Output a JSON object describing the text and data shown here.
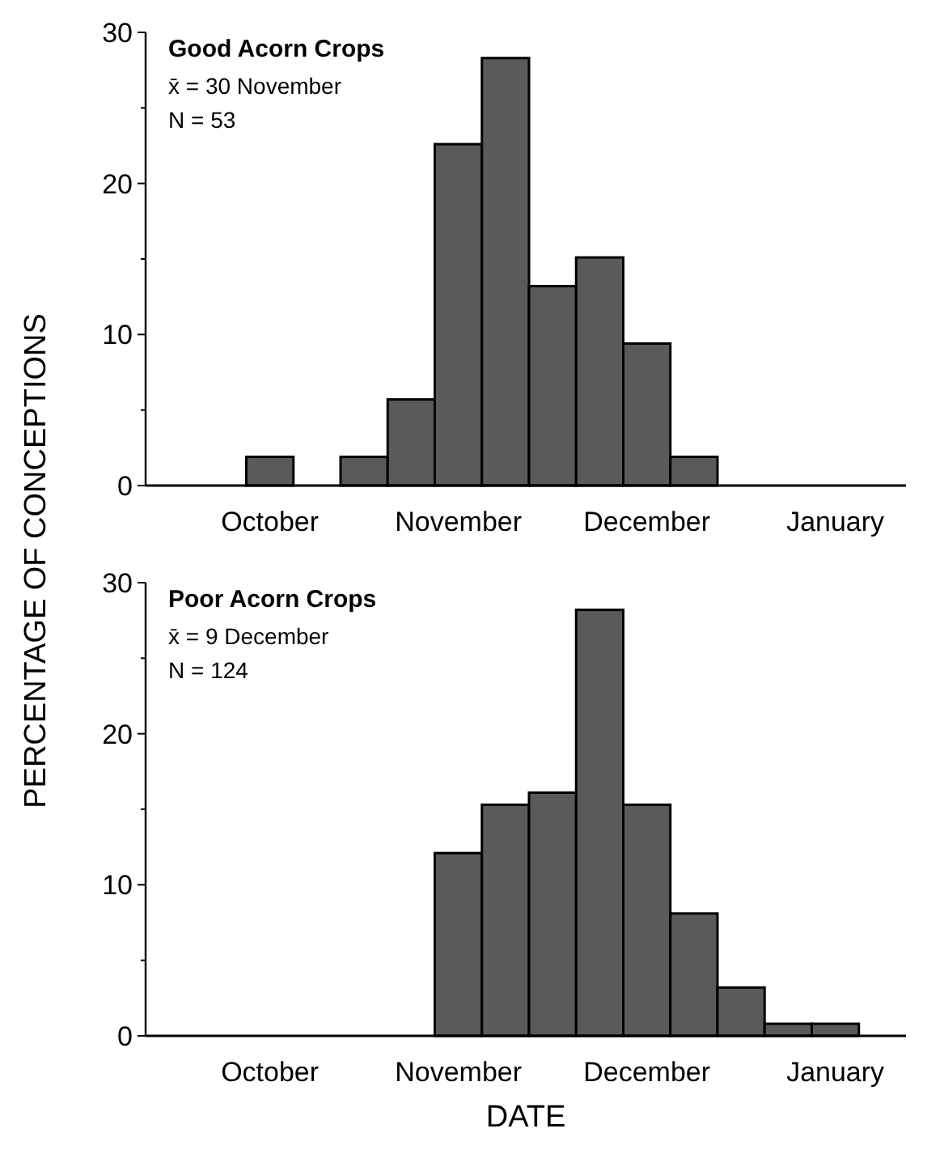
{
  "chart_data": [
    {
      "type": "bar",
      "title": "Good Acorn Crops",
      "ylabel": "PERCENTAGE OF CONCEPTIONS",
      "annotations": [
        "x̄ = 30 November",
        "N = 53"
      ],
      "categories": [
        null,
        null,
        "October",
        null,
        null,
        null,
        "November",
        null,
        null,
        null,
        "December",
        null,
        null,
        null,
        "January",
        null
      ],
      "values": [
        0,
        0,
        1.9,
        0,
        1.9,
        5.7,
        22.6,
        28.3,
        13.2,
        15.1,
        9.4,
        1.9,
        0,
        0,
        0,
        0
      ],
      "color": "#5a5a5a",
      "ylim": [
        0,
        30
      ],
      "yticks": [
        0,
        {
          "value": 5,
          "label": null
        },
        10,
        {
          "value": 15,
          "label": null
        },
        20,
        {
          "value": 25,
          "label": null
        },
        30
      ],
      "grid": false
    },
    {
      "type": "bar",
      "title": "Poor Acorn Crops",
      "xlabel": "DATE",
      "annotations": [
        "x̄ = 9 December",
        "N = 124"
      ],
      "categories": [
        null,
        null,
        "October",
        null,
        null,
        null,
        "November",
        null,
        null,
        null,
        "December",
        null,
        null,
        null,
        "January",
        null
      ],
      "values": [
        0,
        0,
        0,
        0,
        0,
        0,
        12.1,
        15.3,
        16.1,
        28.2,
        15.3,
        8.1,
        3.2,
        0.8,
        0.8,
        0
      ],
      "color": "#5a5a5a",
      "ylim": [
        0,
        30
      ],
      "yticks": [
        0,
        {
          "value": 5,
          "label": null
        },
        10,
        {
          "value": 15,
          "label": null
        },
        20,
        {
          "value": 25,
          "label": null
        },
        30
      ],
      "grid": false
    }
  ]
}
